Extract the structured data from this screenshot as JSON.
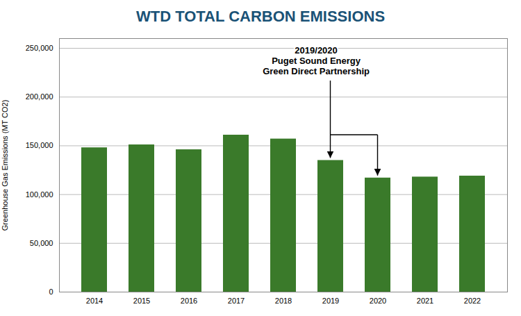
{
  "chart_data": {
    "type": "bar",
    "title": "WTD TOTAL CARBON EMISSIONS",
    "ylabel": "Greenhouse Gas Emissions (MT CO2)",
    "categories": [
      "2014",
      "2015",
      "2016",
      "2017",
      "2018",
      "2019",
      "2020",
      "2021",
      "2022"
    ],
    "values": [
      148000,
      151000,
      146000,
      161000,
      157000,
      135000,
      117000,
      118000,
      119000
    ],
    "color": "#3a7a2a",
    "ylim": [
      0,
      260000
    ],
    "yticks": [
      0,
      {
        "value": 50000,
        "label": "50,000"
      },
      {
        "value": 100000,
        "label": "100,000"
      },
      {
        "value": 150000,
        "label": "150,000"
      },
      {
        "value": 200000,
        "label": "200,000"
      },
      {
        "value": 250000,
        "label": "250,000"
      }
    ],
    "grid": true,
    "annotations": [
      {
        "text": "2019/2020\nPuget Sound Energy\nGreen Direct Partnership",
        "x": [
          "2019",
          "2020"
        ]
      }
    ]
  }
}
